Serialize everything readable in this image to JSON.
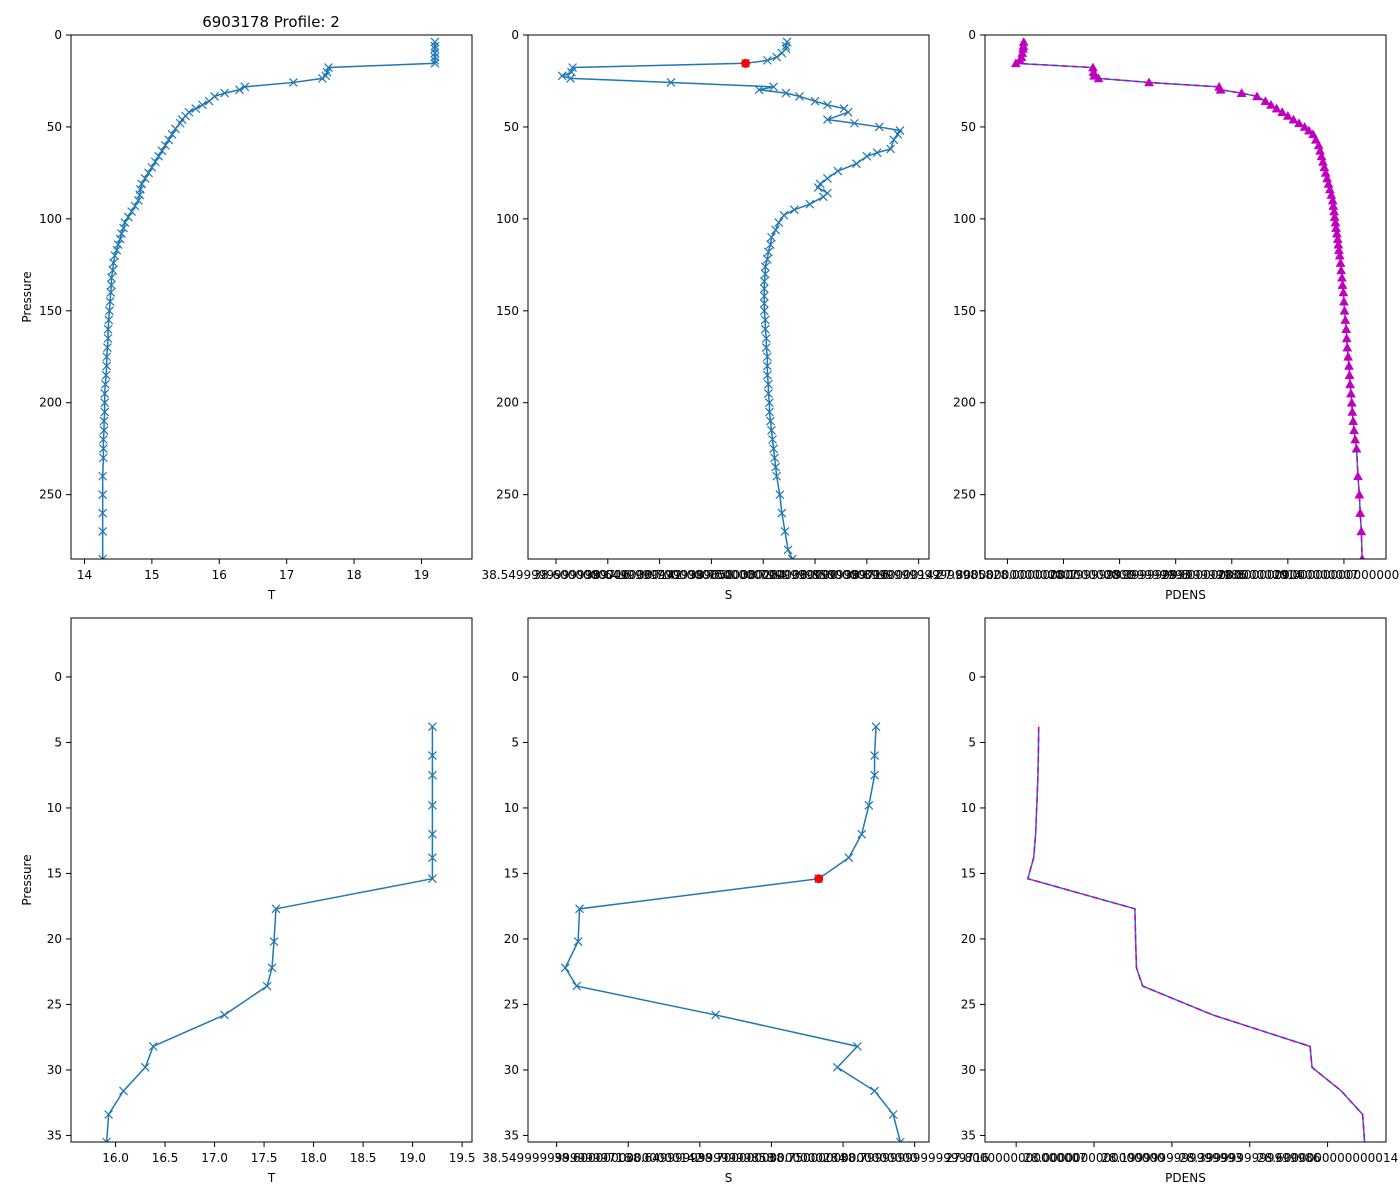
{
  "figure_title": "6903178 Profile: 2",
  "colors": {
    "series": "#1f77b4",
    "flag": "#ff0000",
    "density": "#bf00bf"
  },
  "chart_data": [
    {
      "id": "top-temperature",
      "type": "line",
      "title": "6903178 Profile: 2",
      "xlabel": "T",
      "ylabel": "Pressure",
      "xlim": [
        13.8,
        19.75
      ],
      "ylim": [
        285,
        0
      ],
      "y_inverted": true,
      "xticks": [
        14,
        15,
        16,
        17,
        18,
        19
      ],
      "yticks": [
        0,
        50,
        100,
        150,
        200,
        250
      ],
      "series": [
        {
          "name": "T",
          "marker": "x",
          "x": [
            19.2,
            19.2,
            19.2,
            19.2,
            19.2,
            19.2,
            19.2,
            17.62,
            17.6,
            17.58,
            17.53,
            17.1,
            16.38,
            16.3,
            16.08,
            15.93,
            15.85,
            15.75,
            15.65,
            15.55,
            15.5,
            15.45,
            15.42,
            15.35,
            15.3,
            15.25,
            15.2,
            15.15,
            15.1,
            15.05,
            15.0,
            14.95,
            14.9,
            14.85,
            14.83,
            14.82,
            14.8,
            14.75,
            14.7,
            14.65,
            14.6,
            14.58,
            14.55,
            14.53,
            14.5,
            14.48,
            14.45,
            14.43,
            14.42,
            14.4,
            14.4,
            14.39,
            14.38,
            14.37,
            14.36,
            14.35,
            14.35,
            14.34,
            14.33,
            14.33,
            14.32,
            14.31,
            14.3,
            14.3,
            14.3,
            14.29,
            14.29,
            14.28,
            14.28,
            14.28,
            14.27,
            14.27,
            14.27,
            14.27,
            14.27
          ],
          "y": [
            3.8,
            6.0,
            7.5,
            9.8,
            12.0,
            13.8,
            15.4,
            17.7,
            20.2,
            22.2,
            23.6,
            25.8,
            28.2,
            29.8,
            31.6,
            33.4,
            36,
            38,
            40,
            42,
            44,
            46,
            48,
            51,
            54,
            57,
            60,
            63,
            66,
            69,
            72,
            75,
            78,
            81,
            84,
            87,
            90,
            93,
            96,
            99,
            102,
            105,
            108,
            111,
            114,
            117,
            120,
            124,
            128,
            132,
            136,
            140,
            145,
            150,
            155,
            160,
            165,
            170,
            175,
            180,
            185,
            190,
            195,
            200,
            205,
            210,
            215,
            220,
            225,
            230,
            240,
            250,
            260,
            270,
            285
          ]
        }
      ]
    },
    {
      "id": "top-salinity",
      "type": "line",
      "xlabel": "S",
      "ylabel": "",
      "xlim": [
        38.523,
        38.91
      ],
      "ylim": [
        285,
        0
      ],
      "y_inverted": true,
      "xticks": [
        38.55,
        38.6,
        38.65,
        38.7,
        38.75,
        38.8,
        38.85,
        38.9
      ],
      "yticks": [
        0,
        50,
        100,
        150,
        200,
        250
      ],
      "series": [
        {
          "name": "S",
          "marker": "x",
          "x": [
            38.773,
            38.772,
            38.772,
            38.768,
            38.763,
            38.754,
            38.733,
            38.566,
            38.565,
            38.556,
            38.564,
            38.661,
            38.76,
            38.746,
            38.772,
            38.785,
            38.8,
            38.812,
            38.828,
            38.832,
            38.812,
            38.838,
            38.862,
            38.882,
            38.88,
            38.876,
            38.873,
            38.86,
            38.85,
            38.84,
            38.822,
            38.812,
            38.805,
            38.803,
            38.812,
            38.808,
            38.795,
            38.78,
            38.77,
            38.765,
            38.762,
            38.758,
            38.757,
            38.755,
            38.754,
            38.752,
            38.752,
            38.751,
            38.751,
            38.751,
            38.751,
            38.751,
            38.752,
            38.752,
            38.753,
            38.753,
            38.754,
            38.754,
            38.754,
            38.755,
            38.755,
            38.756,
            38.756,
            38.757,
            38.758,
            38.759,
            38.76,
            38.761,
            38.762,
            38.763,
            38.766,
            38.768,
            38.771,
            38.774,
            38.778
          ],
          "y": [
            3.8,
            6.0,
            7.5,
            9.8,
            12.0,
            13.8,
            15.4,
            17.7,
            20.2,
            22.2,
            23.6,
            25.8,
            28.2,
            29.8,
            31.6,
            33.4,
            36,
            38,
            40,
            42,
            46,
            48,
            50,
            52,
            54,
            57,
            62,
            64,
            66,
            70,
            74,
            78,
            81,
            83,
            86,
            88,
            92,
            95,
            98,
            102,
            106,
            110,
            114,
            118,
            122,
            126,
            130,
            134,
            138,
            142,
            146,
            150,
            155,
            160,
            165,
            170,
            175,
            180,
            185,
            190,
            195,
            200,
            205,
            210,
            215,
            220,
            225,
            230,
            235,
            240,
            250,
            260,
            270,
            280,
            285
          ]
        }
      ],
      "flagged_point": {
        "x": 38.733,
        "y": 15.4
      }
    },
    {
      "id": "top-density",
      "type": "line",
      "xlabel": "PDENS",
      "ylabel": "",
      "xlim": [
        27.72,
        29.15
      ],
      "ylim": [
        285,
        0
      ],
      "y_inverted": true,
      "xticks": [
        27.8,
        28.0,
        28.2,
        28.4,
        28.6,
        28.8,
        29.0
      ],
      "yticks": [
        0,
        50,
        100,
        150,
        200,
        250
      ],
      "series": [
        {
          "name": "PDENS",
          "marker": "^",
          "x": [
            27.858,
            27.857,
            27.856,
            27.853,
            27.85,
            27.845,
            27.83,
            28.105,
            28.107,
            28.109,
            28.125,
            28.305,
            28.555,
            28.56,
            28.635,
            28.69,
            28.72,
            28.74,
            28.76,
            28.78,
            28.8,
            28.82,
            28.84,
            28.86,
            28.875,
            28.89,
            28.9,
            28.91,
            28.915,
            28.92,
            28.925,
            28.93,
            28.935,
            28.94,
            28.945,
            28.95,
            28.955,
            28.96,
            28.962,
            28.965,
            28.967,
            28.97,
            28.972,
            28.975,
            28.978,
            28.98,
            28.982,
            28.985,
            28.988,
            28.99,
            28.993,
            28.995,
            28.998,
            29.0,
            29.002,
            29.005,
            29.008,
            29.01,
            29.012,
            29.015,
            29.018,
            29.02,
            29.022,
            29.025,
            29.028,
            29.03,
            29.033,
            29.036,
            29.04,
            29.045,
            29.05,
            29.055,
            29.058,
            29.062,
            29.065
          ],
          "y": [
            3.8,
            6.0,
            7.5,
            9.8,
            12.0,
            13.8,
            15.4,
            17.7,
            20.2,
            22.2,
            23.6,
            25.8,
            28.2,
            29.8,
            31.6,
            33.4,
            36,
            38,
            40,
            42,
            44,
            46,
            48,
            50,
            52,
            54,
            57,
            60,
            63,
            66,
            69,
            72,
            75,
            78,
            81,
            84,
            87,
            90,
            93,
            96,
            99,
            102,
            105,
            108,
            111,
            114,
            117,
            120,
            124,
            128,
            132,
            136,
            140,
            145,
            150,
            155,
            160,
            165,
            170,
            175,
            180,
            185,
            190,
            195,
            200,
            205,
            210,
            215,
            220,
            225,
            240,
            250,
            260,
            270,
            285
          ]
        }
      ]
    },
    {
      "id": "bottom-temperature",
      "type": "line",
      "xlabel": "T",
      "ylabel": "Pressure",
      "xlim": [
        15.55,
        19.6
      ],
      "ylim": [
        35.5,
        -4.5
      ],
      "y_inverted": true,
      "xticks": [
        16.0,
        16.5,
        17.0,
        17.5,
        18.0,
        18.5,
        19.0,
        19.5
      ],
      "yticks": [
        0,
        5,
        10,
        15,
        20,
        25,
        30,
        35
      ],
      "series": [
        {
          "name": "T",
          "marker": "x",
          "x": [
            19.2,
            19.2,
            19.2,
            19.2,
            19.2,
            19.2,
            19.2,
            17.62,
            17.6,
            17.58,
            17.53,
            17.1,
            16.38,
            16.3,
            16.08,
            15.93,
            15.91
          ],
          "y": [
            3.8,
            6.0,
            7.5,
            9.8,
            12.0,
            13.8,
            15.4,
            17.7,
            20.2,
            22.2,
            23.6,
            25.8,
            28.2,
            29.8,
            31.6,
            33.4,
            35.5
          ]
        }
      ]
    },
    {
      "id": "bottom-salinity",
      "type": "line",
      "xlabel": "S",
      "ylabel": "",
      "xlim": [
        38.53,
        38.81
      ],
      "ylim": [
        35.5,
        -4.5
      ],
      "y_inverted": true,
      "xticks": [
        38.55,
        38.6,
        38.65,
        38.7,
        38.75,
        38.8
      ],
      "yticks": [
        0,
        5,
        10,
        15,
        20,
        25,
        30,
        35
      ],
      "series": [
        {
          "name": "S",
          "marker": "x",
          "x": [
            38.773,
            38.772,
            38.772,
            38.768,
            38.763,
            38.754,
            38.733,
            38.566,
            38.565,
            38.556,
            38.564,
            38.661,
            38.76,
            38.746,
            38.772,
            38.785,
            38.79
          ],
          "y": [
            3.8,
            6.0,
            7.5,
            9.8,
            12.0,
            13.8,
            15.4,
            17.7,
            20.2,
            22.2,
            23.6,
            25.8,
            28.2,
            29.8,
            31.6,
            33.4,
            35.5
          ]
        }
      ],
      "flagged_point": {
        "x": 38.733,
        "y": 15.4
      }
    },
    {
      "id": "bottom-density",
      "type": "line",
      "xlabel": "PDENS",
      "ylabel": "",
      "xlim": [
        27.72,
        28.75
      ],
      "ylim": [
        35.5,
        -4.5
      ],
      "y_inverted": true,
      "xticks": [
        27.8,
        28.0,
        28.2,
        28.4,
        28.6
      ],
      "yticks": [
        0,
        5,
        10,
        15,
        20,
        25,
        30,
        35
      ],
      "series": [
        {
          "name": "PDENS",
          "marker": "none",
          "x": [
            27.858,
            27.857,
            27.856,
            27.853,
            27.85,
            27.845,
            27.83,
            28.105,
            28.107,
            28.109,
            28.125,
            28.305,
            28.555,
            28.56,
            28.635,
            28.69,
            28.695
          ],
          "y": [
            3.8,
            6.0,
            7.5,
            9.8,
            12.0,
            13.8,
            15.4,
            17.7,
            20.2,
            22.2,
            23.6,
            25.8,
            28.2,
            29.8,
            31.6,
            33.4,
            35.5
          ]
        }
      ]
    }
  ]
}
